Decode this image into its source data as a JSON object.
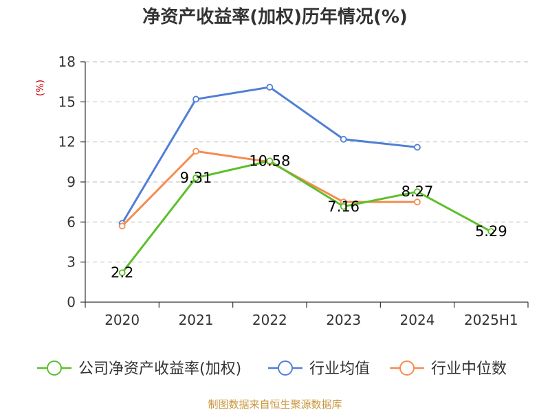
{
  "chart_data": {
    "type": "line",
    "title": "净资产收益率(加权)历年情况(%)",
    "unit_label": "(%)",
    "categories": [
      "2020",
      "2021",
      "2022",
      "2023",
      "2024",
      "2025H1"
    ],
    "ylim": [
      0,
      18
    ],
    "yticks": [
      0,
      3,
      6,
      9,
      12,
      15,
      18
    ],
    "grid": true,
    "legend_position": "bottom",
    "series": [
      {
        "name": "公司净资产收益率(加权)",
        "color": "#5cbf2a",
        "values": [
          2.2,
          9.31,
          10.58,
          7.16,
          8.27,
          5.29
        ],
        "labels": [
          "2.2",
          "9.31",
          "10.58",
          "7.16",
          "8.27",
          "5.29"
        ]
      },
      {
        "name": "行业均值",
        "color": "#4f7fd6",
        "values": [
          5.9,
          15.2,
          16.1,
          12.2,
          11.6,
          null
        ]
      },
      {
        "name": "行业中位数",
        "color": "#f58c50",
        "values": [
          5.7,
          11.3,
          10.5,
          7.5,
          7.5,
          null
        ]
      }
    ]
  },
  "source": "制图数据来自恒生聚源数据库"
}
